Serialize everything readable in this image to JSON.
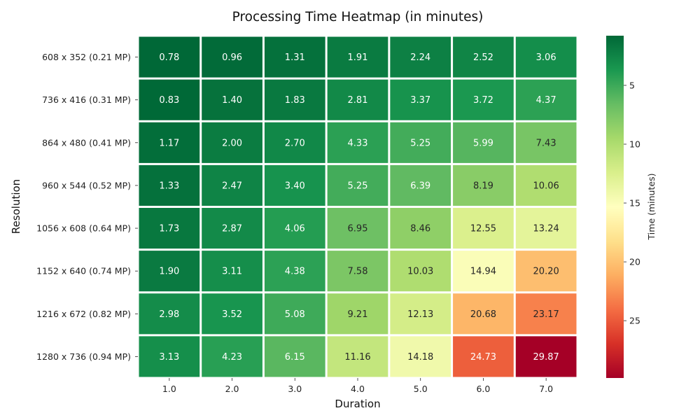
{
  "chart_data": {
    "type": "heatmap",
    "title": "Processing Time Heatmap (in minutes)",
    "xlabel": "Duration",
    "ylabel": "Resolution",
    "x_categories": [
      "1.0",
      "2.0",
      "3.0",
      "4.0",
      "5.0",
      "6.0",
      "7.0"
    ],
    "y_categories": [
      "608 x 352 (0.21 MP)",
      "736 x 416 (0.31 MP)",
      "864 x 480 (0.41 MP)",
      "960 x 544 (0.52 MP)",
      "1056 x 608 (0.64 MP)",
      "1152 x 640 (0.74 MP)",
      "1216 x 672 (0.82 MP)",
      "1280 x 736 (0.94 MP)"
    ],
    "values": [
      [
        0.78,
        0.96,
        1.31,
        1.91,
        2.24,
        2.52,
        3.06
      ],
      [
        0.83,
        1.4,
        1.83,
        2.81,
        3.37,
        3.72,
        4.37
      ],
      [
        1.17,
        2.0,
        2.7,
        4.33,
        5.25,
        5.99,
        7.43
      ],
      [
        1.33,
        2.47,
        3.4,
        5.25,
        6.39,
        8.19,
        10.06
      ],
      [
        1.73,
        2.87,
        4.06,
        6.95,
        8.46,
        12.55,
        13.24
      ],
      [
        1.9,
        3.11,
        4.38,
        7.58,
        10.03,
        14.94,
        20.2
      ],
      [
        2.98,
        3.52,
        5.08,
        9.21,
        12.13,
        20.68,
        23.17
      ],
      [
        3.13,
        4.23,
        6.15,
        11.16,
        14.18,
        24.73,
        29.87
      ]
    ],
    "value_labels": [
      [
        "0.78",
        "0.96",
        "1.31",
        "1.91",
        "2.24",
        "2.52",
        "3.06"
      ],
      [
        "0.83",
        "1.40",
        "1.83",
        "2.81",
        "3.37",
        "3.72",
        "4.37"
      ],
      [
        "1.17",
        "2.00",
        "2.70",
        "4.33",
        "5.25",
        "5.99",
        "7.43"
      ],
      [
        "1.33",
        "2.47",
        "3.40",
        "5.25",
        "6.39",
        "8.19",
        "10.06"
      ],
      [
        "1.73",
        "2.87",
        "4.06",
        "6.95",
        "8.46",
        "12.55",
        "13.24"
      ],
      [
        "1.90",
        "3.11",
        "4.38",
        "7.58",
        "10.03",
        "14.94",
        "20.20"
      ],
      [
        "2.98",
        "3.52",
        "5.08",
        "9.21",
        "12.13",
        "20.68",
        "23.17"
      ],
      [
        "3.13",
        "4.23",
        "6.15",
        "11.16",
        "14.18",
        "24.73",
        "29.87"
      ]
    ],
    "colormap": "RdYlGn (reversed: green = low, red = high)",
    "colorbar": {
      "label": "Time (minutes)",
      "range": [
        0.78,
        29.87
      ],
      "ticks": [
        5,
        10,
        15,
        20,
        25
      ],
      "tick_labels": [
        "5",
        "10",
        "15",
        "20",
        "25"
      ],
      "orientation": "inverted (low values at top)"
    },
    "grid": false,
    "legend": "colorbar on right"
  },
  "colors": {
    "low": "#006837",
    "mid": "#ffffbf",
    "high": "#a50026",
    "cell_separator": "#ffffff"
  }
}
